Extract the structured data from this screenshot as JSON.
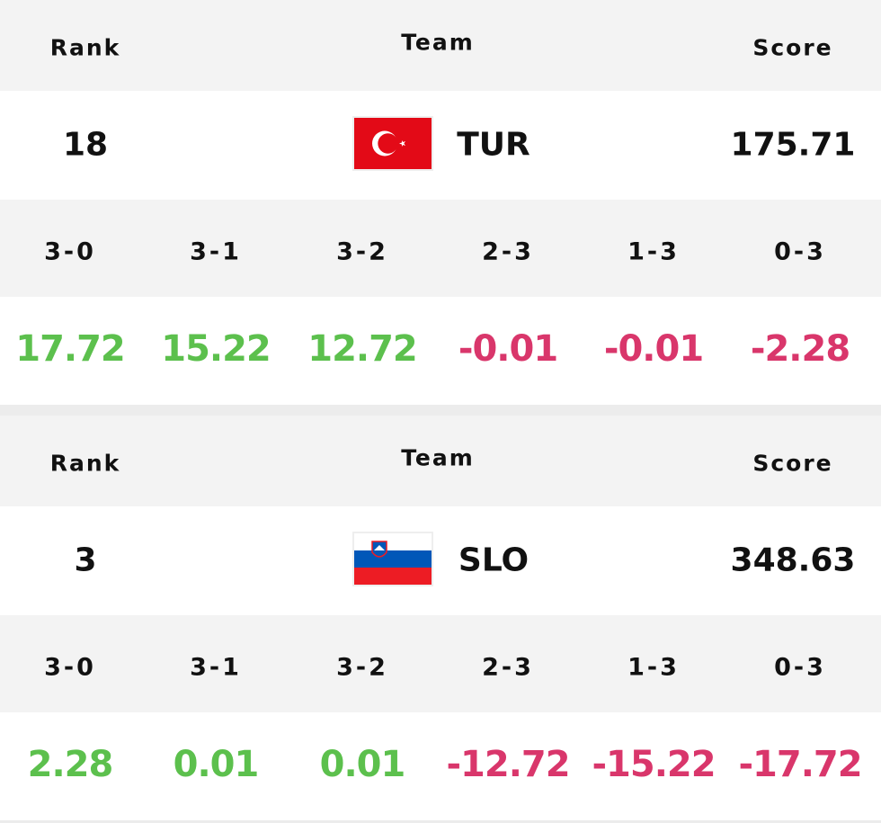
{
  "blocks": [
    {
      "headers": {
        "rank": "Rank",
        "team": "Team",
        "score": "Score"
      },
      "rank": "18",
      "team": "TUR",
      "score": "175.71",
      "flag": "tur",
      "results": [
        {
          "label": "3-0",
          "value": 17.72
        },
        {
          "label": "3-1",
          "value": 15.22
        },
        {
          "label": "3-2",
          "value": 12.72
        },
        {
          "label": "2-3",
          "value": -0.01
        },
        {
          "label": "1-3",
          "value": -0.01
        },
        {
          "label": "0-3",
          "value": -2.28
        }
      ]
    },
    {
      "headers": {
        "rank": "Rank",
        "team": "Team",
        "score": "Score"
      },
      "rank": "3",
      "team": "SLO",
      "score": "348.63",
      "flag": "slo",
      "results": [
        {
          "label": "3-0",
          "value": 2.28
        },
        {
          "label": "3-1",
          "value": 0.01
        },
        {
          "label": "3-2",
          "value": 0.01
        },
        {
          "label": "2-3",
          "value": -12.72
        },
        {
          "label": "1-3",
          "value": -15.22
        },
        {
          "label": "0-3",
          "value": -17.72
        }
      ]
    }
  ]
}
